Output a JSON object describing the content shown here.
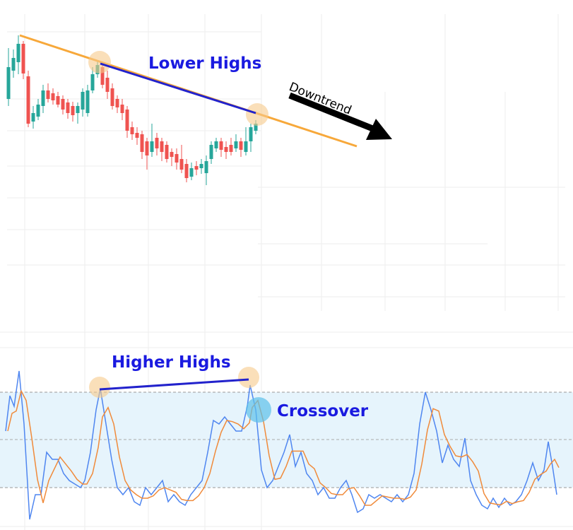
{
  "annotations": {
    "lower_highs": "Lower Highs",
    "downtrend": "Downtrend",
    "higher_highs": "Higher Highs",
    "crossover": "Crossover"
  }
}
